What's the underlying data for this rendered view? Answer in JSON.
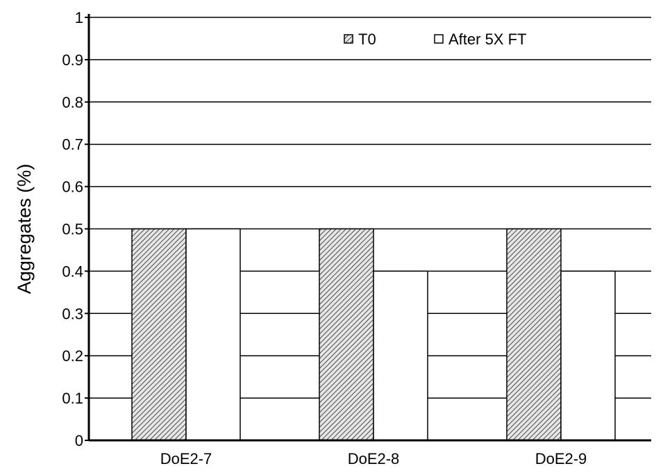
{
  "chart_data": {
    "type": "bar",
    "title": "",
    "xlabel": "",
    "ylabel": "Aggregates (%)",
    "ylim": [
      0,
      1
    ],
    "yticks": [
      "0",
      "0.1",
      "0.2",
      "0.3",
      "0.4",
      "0.5",
      "0.6",
      "0.7",
      "0.8",
      "0.9",
      "1"
    ],
    "categories": [
      "DoE2-7",
      "DoE2-8",
      "DoE2-9"
    ],
    "series": [
      {
        "name": "T0",
        "values": [
          0.5,
          0.5,
          0.5
        ],
        "fill": "hatched"
      },
      {
        "name": "After 5X FT",
        "values": [
          0.5,
          0.4,
          0.4
        ],
        "fill": "white"
      }
    ],
    "grid": true,
    "legend_position": "top-right",
    "colors": {
      "axis": "#000000",
      "grid": "#000000",
      "bar_outline": "#000000",
      "hatch": "#555555",
      "background": "#ffffff"
    }
  }
}
